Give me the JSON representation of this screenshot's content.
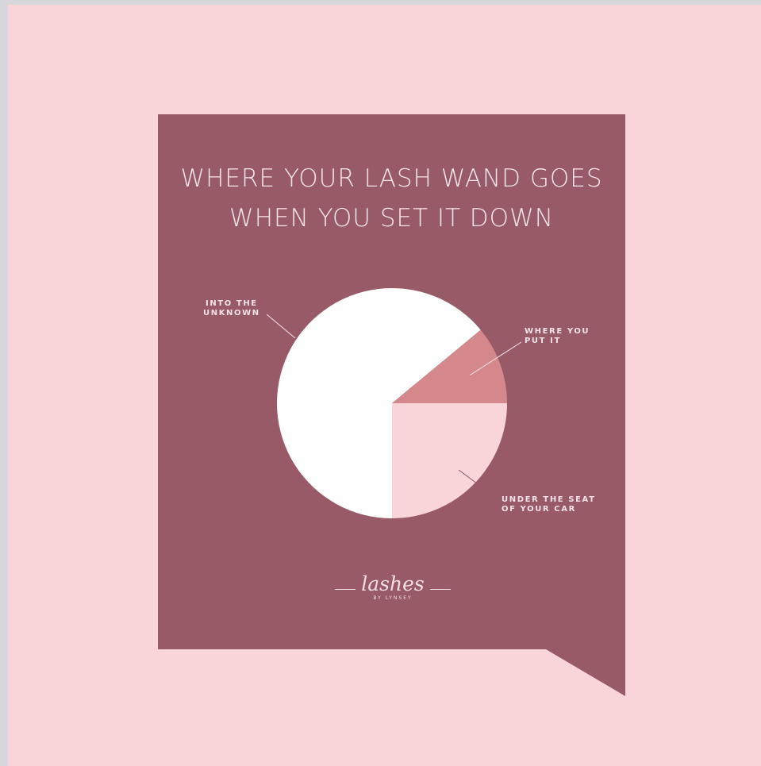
{
  "title_lines": [
    "WHERE YOUR LASH WAND GOES",
    "WHEN YOU SET IT DOWN"
  ],
  "colors": {
    "page_background": "#f9d5da",
    "card": "#985a67",
    "slice_unknown": "#ffffff",
    "slice_where_you_put_it": "#d4888c",
    "slice_under_seat": "#f9d5da",
    "text": "#f6e6ea"
  },
  "logo": {
    "script": "lashes",
    "sub": "BY LYNSEY"
  },
  "chart_data": {
    "type": "pie",
    "title": "WHERE YOUR LASH WAND GOES WHEN YOU SET IT DOWN",
    "start_angle_deg": 90,
    "direction": "clockwise",
    "slices": [
      {
        "label": "UNDER THE SEAT\nOF YOUR CAR",
        "value": 25,
        "color": "#f9d5da"
      },
      {
        "label": "INTO THE\nUNKNOWN",
        "value": 64,
        "color": "#ffffff"
      },
      {
        "label": "WHERE YOU\nPUT IT",
        "value": 11,
        "color": "#d4888c"
      }
    ]
  }
}
